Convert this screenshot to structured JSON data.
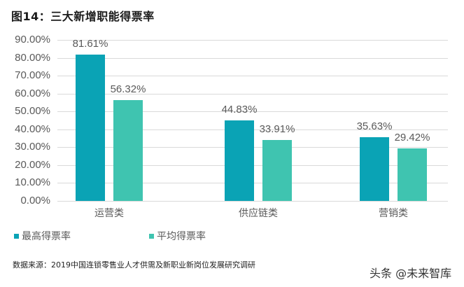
{
  "title": "图14：三大新增职能得票率",
  "chart_data": {
    "type": "bar",
    "title": "三大新增职能得票率",
    "categories": [
      "运营类",
      "供应链类",
      "营销类"
    ],
    "series": [
      {
        "name": "最高得票率",
        "color": "#0aa3b5",
        "values": [
          81.61,
          44.83,
          35.63
        ],
        "labels": [
          "81.61%",
          "44.83%",
          "35.63%"
        ]
      },
      {
        "name": "平均得票率",
        "color": "#3fc4b0",
        "values": [
          56.32,
          33.91,
          29.42
        ],
        "labels": [
          "56.32%",
          "33.91%",
          "29.42%"
        ]
      }
    ],
    "yticks": [
      "0.00%",
      "10.00%",
      "20.00%",
      "30.00%",
      "40.00%",
      "50.00%",
      "60.00%",
      "70.00%",
      "80.00%",
      "90.00%"
    ],
    "ylim": [
      0,
      90
    ],
    "xlabel": "",
    "ylabel": "",
    "grid": true,
    "legend_position": "bottom-left"
  },
  "legend": [
    "最高得票率",
    "平均得票率"
  ],
  "source": "数据来源：2019中国连锁零售业人才供需及新职业新岗位发展研究调研",
  "watermark": "头条 @未来智库"
}
